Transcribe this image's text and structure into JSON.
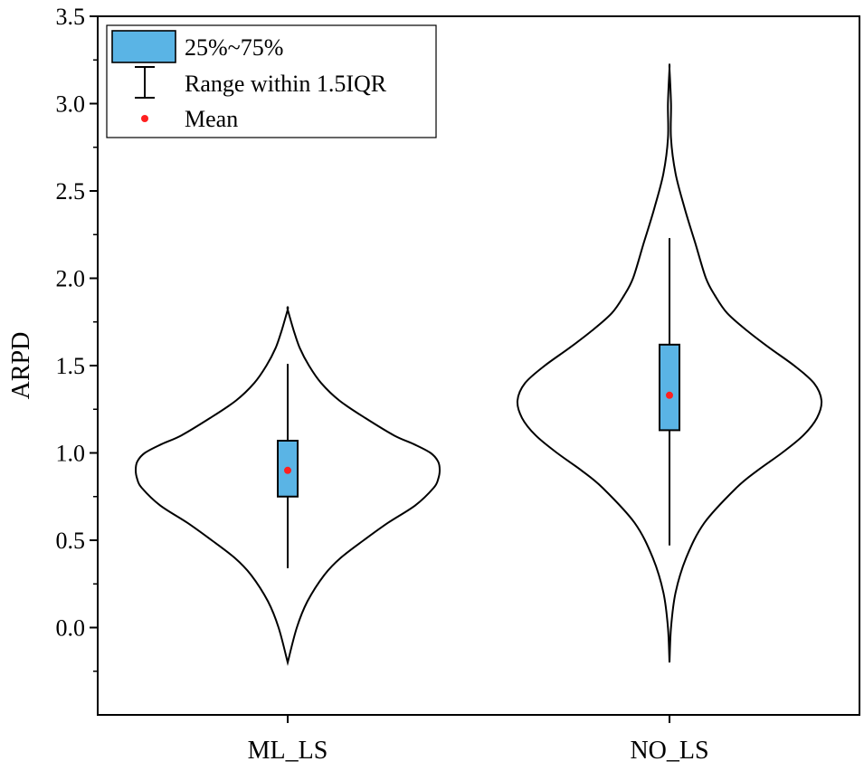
{
  "chart_data": {
    "type": "violin",
    "title": "",
    "xlabel": "",
    "ylabel": "ARPD",
    "ylim": [
      -0.5,
      3.5
    ],
    "yticks": [
      "0.0",
      "0.5",
      "1.0",
      "1.5",
      "2.0",
      "2.5",
      "3.0",
      "3.5"
    ],
    "ytick_values": [
      0.0,
      0.5,
      1.0,
      1.5,
      2.0,
      2.5,
      3.0,
      3.5
    ],
    "categories": [
      "ML_LS",
      "NO_LS"
    ],
    "series": [
      {
        "name": "ML_LS",
        "min": -0.2,
        "max": 1.82,
        "q1": 0.75,
        "q3": 1.07,
        "whisker_low": 0.34,
        "whisker_high": 1.51,
        "mean": 0.9,
        "density": [
          [
            -0.2,
            0.0
          ],
          [
            0.0,
            0.06
          ],
          [
            0.15,
            0.13
          ],
          [
            0.3,
            0.24
          ],
          [
            0.4,
            0.35
          ],
          [
            0.5,
            0.5
          ],
          [
            0.6,
            0.66
          ],
          [
            0.7,
            0.84
          ],
          [
            0.8,
            0.96
          ],
          [
            0.85,
            0.99
          ],
          [
            0.9,
            1.0
          ],
          [
            0.95,
            0.99
          ],
          [
            1.0,
            0.94
          ],
          [
            1.05,
            0.83
          ],
          [
            1.1,
            0.7
          ],
          [
            1.2,
            0.51
          ],
          [
            1.3,
            0.34
          ],
          [
            1.4,
            0.22
          ],
          [
            1.5,
            0.14
          ],
          [
            1.6,
            0.08
          ],
          [
            1.7,
            0.04
          ],
          [
            1.82,
            0.0
          ]
        ]
      },
      {
        "name": "NO_LS",
        "min": -0.2,
        "max": 3.2,
        "q1": 1.13,
        "q3": 1.62,
        "whisker_low": 0.47,
        "whisker_high": 2.23,
        "mean": 1.33,
        "density": [
          [
            -0.2,
            0.0
          ],
          [
            0.0,
            0.01
          ],
          [
            0.2,
            0.04
          ],
          [
            0.4,
            0.11
          ],
          [
            0.6,
            0.23
          ],
          [
            0.8,
            0.44
          ],
          [
            0.9,
            0.58
          ],
          [
            1.0,
            0.74
          ],
          [
            1.1,
            0.88
          ],
          [
            1.2,
            0.97
          ],
          [
            1.3,
            1.0
          ],
          [
            1.4,
            0.95
          ],
          [
            1.5,
            0.82
          ],
          [
            1.6,
            0.66
          ],
          [
            1.7,
            0.51
          ],
          [
            1.8,
            0.38
          ],
          [
            1.9,
            0.3
          ],
          [
            2.0,
            0.24
          ],
          [
            2.2,
            0.17
          ],
          [
            2.4,
            0.1
          ],
          [
            2.6,
            0.04
          ],
          [
            2.8,
            0.01
          ],
          [
            3.0,
            0.01
          ],
          [
            3.2,
            0.0
          ]
        ]
      }
    ],
    "legend": {
      "position": "top-left",
      "entries": [
        "25%~75%",
        "Range within 1.5IQR",
        "Mean"
      ]
    },
    "colors": {
      "box_fill": "#5ab4e5",
      "mean_dot": "#ff2020",
      "line": "#000000"
    }
  }
}
